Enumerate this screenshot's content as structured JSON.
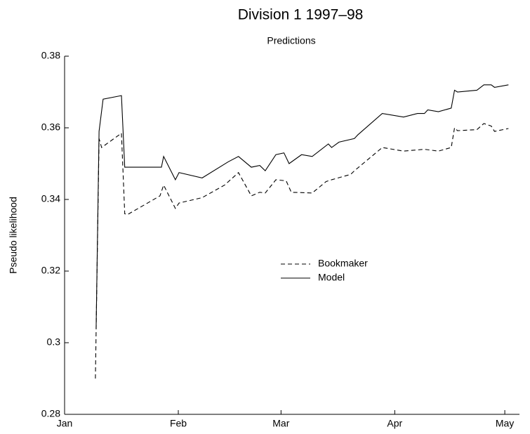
{
  "chart_data": {
    "type": "line",
    "title": "Division 1 1997–98",
    "subtitle": "Predictions",
    "ylabel": "Pseudo likelihood",
    "xlim": [
      0,
      124
    ],
    "xticks": [
      {
        "value": 0,
        "label": "Jan"
      },
      {
        "value": 31,
        "label": "Feb"
      },
      {
        "value": 59,
        "label": "Mar"
      },
      {
        "value": 90,
        "label": "Apr"
      },
      {
        "value": 120,
        "label": "May"
      }
    ],
    "ylim": [
      0.28,
      0.38
    ],
    "yticks": [
      0.28,
      0.3,
      0.32,
      0.34,
      0.36,
      0.38
    ],
    "series": [
      {
        "name": "Bookmaker",
        "color": "#000000",
        "linestyle": "dashed",
        "x": [
          8.4,
          9.4,
          10.1,
          15.5,
          16.4,
          17.2,
          26.0,
          27.0,
          30.2,
          31.2,
          37.5,
          43.6,
          47.4,
          50.9,
          53.2,
          54.7,
          57.6,
          60.4,
          61.8,
          67.5,
          71.3,
          72.8,
          78.0,
          79.0,
          86.6,
          92.4,
          98.1,
          101.9,
          105.4,
          106.3,
          107.1,
          112.4,
          114.3,
          116.3,
          117.2,
          121.0
        ],
        "values": [
          0.29,
          0.357,
          0.3545,
          0.3585,
          0.336,
          0.3358,
          0.341,
          0.344,
          0.3375,
          0.339,
          0.3405,
          0.344,
          0.3475,
          0.341,
          0.342,
          0.3418,
          0.3455,
          0.3452,
          0.342,
          0.3418,
          0.345,
          0.3455,
          0.347,
          0.348,
          0.3545,
          0.3535,
          0.354,
          0.3535,
          0.3545,
          0.36,
          0.3592,
          0.3595,
          0.3612,
          0.3605,
          0.359,
          0.3598
        ]
      },
      {
        "name": "Model",
        "color": "#000000",
        "linestyle": "solid",
        "x": [
          8.6,
          9.4,
          10.5,
          15.5,
          16.4,
          17.2,
          26.4,
          27.0,
          30.2,
          31.2,
          37.5,
          44.6,
          47.4,
          50.9,
          53.2,
          54.7,
          57.6,
          59.8,
          61.2,
          64.6,
          67.5,
          71.9,
          72.8,
          74.8,
          79.0,
          79.9,
          86.6,
          92.4,
          96.2,
          98.1,
          99.0,
          101.9,
          105.4,
          106.3,
          107.1,
          112.4,
          114.3,
          116.3,
          117.2,
          121.0
        ],
        "values": [
          0.304,
          0.359,
          0.368,
          0.369,
          0.349,
          0.349,
          0.349,
          0.352,
          0.3455,
          0.3475,
          0.346,
          0.3505,
          0.352,
          0.349,
          0.3495,
          0.348,
          0.3525,
          0.353,
          0.35,
          0.3525,
          0.352,
          0.3555,
          0.3545,
          0.356,
          0.357,
          0.358,
          0.364,
          0.363,
          0.364,
          0.364,
          0.365,
          0.3645,
          0.3655,
          0.3705,
          0.37,
          0.3705,
          0.372,
          0.372,
          0.3713,
          0.372
        ]
      }
    ]
  }
}
